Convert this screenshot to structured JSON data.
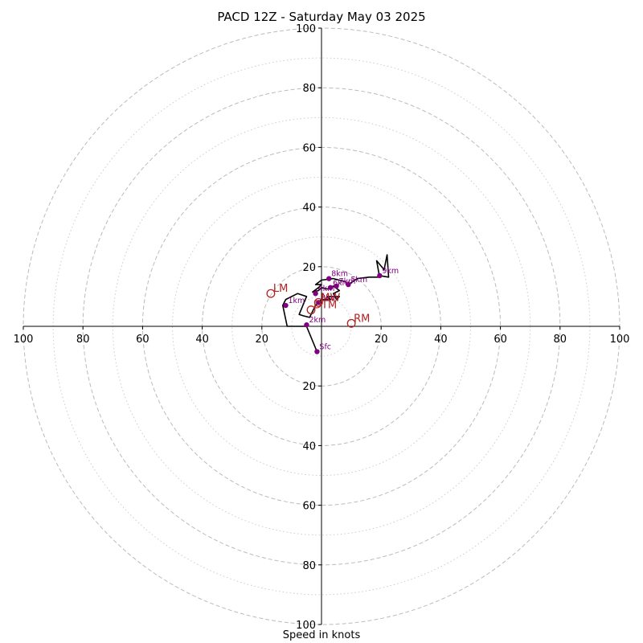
{
  "chart_data": {
    "type": "line",
    "title": "PACD 12Z - Saturday May 03 2025",
    "xlabel": "Speed in knots",
    "ylabel": "",
    "xlim": [
      -100,
      100
    ],
    "ylim": [
      -100,
      100
    ],
    "grid": {
      "major_rings": [
        20,
        40,
        60,
        80,
        100
      ],
      "minor_rings": [
        10,
        30,
        50,
        70,
        90
      ],
      "major_style": "dashed",
      "minor_style": "dotted"
    },
    "ticks": {
      "x_left": [
        "100",
        "80",
        "60",
        "40",
        "20"
      ],
      "x_left_values": [
        -100,
        -80,
        -60,
        -40,
        -20
      ],
      "x_right": [
        "20",
        "40",
        "60",
        "80",
        "100"
      ],
      "x_right_values": [
        20,
        40,
        60,
        80,
        100
      ],
      "y_top": [
        "20",
        "40",
        "60",
        "80",
        "100"
      ],
      "y_top_values": [
        20,
        40,
        60,
        80,
        100
      ],
      "y_bottom": [
        "20",
        "40",
        "60",
        "80",
        "100"
      ],
      "y_bottom_values": [
        -20,
        -40,
        -60,
        -80,
        -100
      ]
    },
    "series": [
      {
        "color": "#000000",
        "points": [
          [
            -1.5,
            -8.5
          ],
          [
            -5,
            0
          ],
          [
            -11.5,
            0
          ],
          [
            -13,
            7
          ],
          [
            -12,
            9
          ],
          [
            -8,
            11
          ],
          [
            -5,
            10
          ],
          [
            -7.5,
            4
          ],
          [
            -6,
            3.5
          ],
          [
            -4,
            3
          ],
          [
            -3,
            5
          ],
          [
            -2,
            7
          ],
          [
            0,
            9
          ],
          [
            3,
            9
          ],
          [
            2,
            10
          ],
          [
            6,
            10
          ],
          [
            5,
            9
          ],
          [
            4,
            11
          ],
          [
            6,
            12
          ],
          [
            4,
            13.5
          ],
          [
            2,
            12.5
          ],
          [
            0,
            13
          ],
          [
            -1,
            12
          ],
          [
            -3,
            11.5
          ],
          [
            -1,
            13
          ],
          [
            0,
            14
          ],
          [
            -2,
            14
          ],
          [
            0,
            15.5
          ],
          [
            4,
            16
          ],
          [
            8,
            15
          ],
          [
            9,
            14
          ],
          [
            12,
            16
          ],
          [
            16,
            16.5
          ],
          [
            19.5,
            16.5
          ],
          [
            18.5,
            22
          ],
          [
            21,
            19
          ],
          [
            22,
            24
          ],
          [
            22.5,
            16.5
          ],
          [
            19.5,
            17
          ]
        ]
      }
    ],
    "height_markers": [
      {
        "label": "Sfc",
        "x": -1.5,
        "y": -8.5
      },
      {
        "label": "1km",
        "x": -12,
        "y": 7
      },
      {
        "label": "2km",
        "x": -5,
        "y": 0.5
      },
      {
        "label": "3km",
        "x": -1,
        "y": 8
      },
      {
        "label": "4km",
        "x": -2,
        "y": 11
      },
      {
        "label": "5km",
        "x": 9,
        "y": 14
      },
      {
        "label": "6km",
        "x": 3,
        "y": 13
      },
      {
        "label": "7km",
        "x": 5,
        "y": 13.5
      },
      {
        "label": "8km",
        "x": 2.5,
        "y": 16
      },
      {
        "label": "9km",
        "x": 19.5,
        "y": 17
      }
    ],
    "markers": [
      {
        "label": "LM",
        "x": -17,
        "y": 11,
        "color": "#b22222"
      },
      {
        "label": "RM",
        "x": 10,
        "y": 1,
        "color": "#b22222"
      },
      {
        "label": "MW",
        "x": -1,
        "y": 8,
        "color": "#b22222"
      },
      {
        "label": "DTM",
        "x": -3.5,
        "y": 5.5,
        "color": "#b22222"
      }
    ],
    "colors": {
      "hodograph_line": "#000000",
      "height_marker": "#800080",
      "storm_motion": "#b22222",
      "grid": "#bbbbbb",
      "axes": "#000000"
    }
  }
}
